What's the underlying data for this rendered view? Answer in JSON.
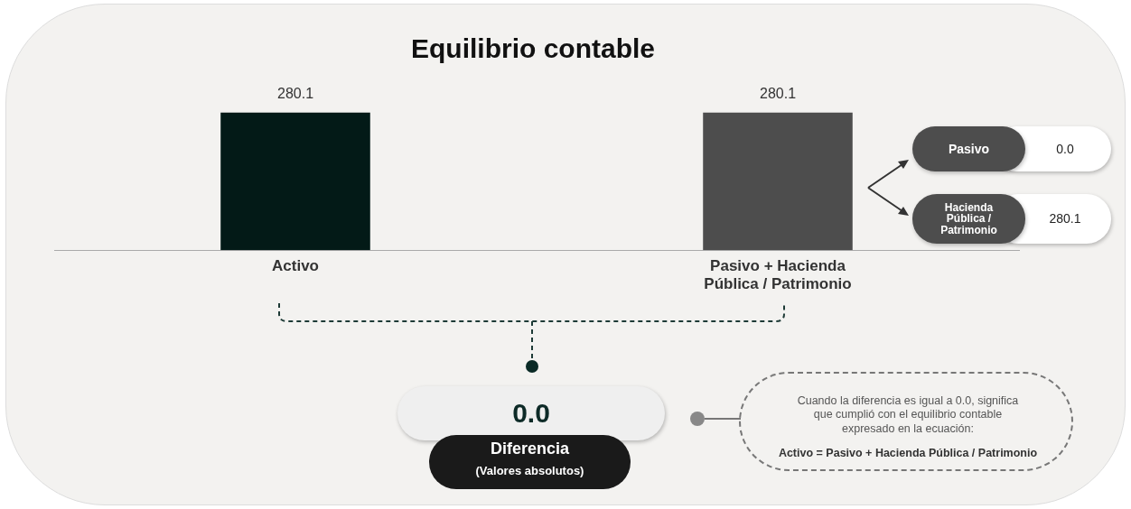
{
  "chart_data": {
    "type": "bar",
    "title": "Equilibrio contable",
    "categories": [
      "Activo",
      "Pasivo + Hacienda Pública / Patrimonio"
    ],
    "values": [
      280.1,
      280.1
    ],
    "colors": [
      "#031a17",
      "#4d4d4d"
    ],
    "data_labels": true,
    "relative": false,
    "grid": false,
    "legend": false,
    "annotations": [
      "Pasivo",
      "0.0",
      "Hacienda Pública / Patrimonio",
      "280.1",
      "0.0",
      "Diferencia",
      "(Valores absolutos)",
      "Cuando la diferencia es igual a 0.0, significa que cumplió con el equilibrio contable expresado en la ecuación:",
      "Activo = Pasivo + Hacienda Pública / Patrimonio"
    ]
  }
}
